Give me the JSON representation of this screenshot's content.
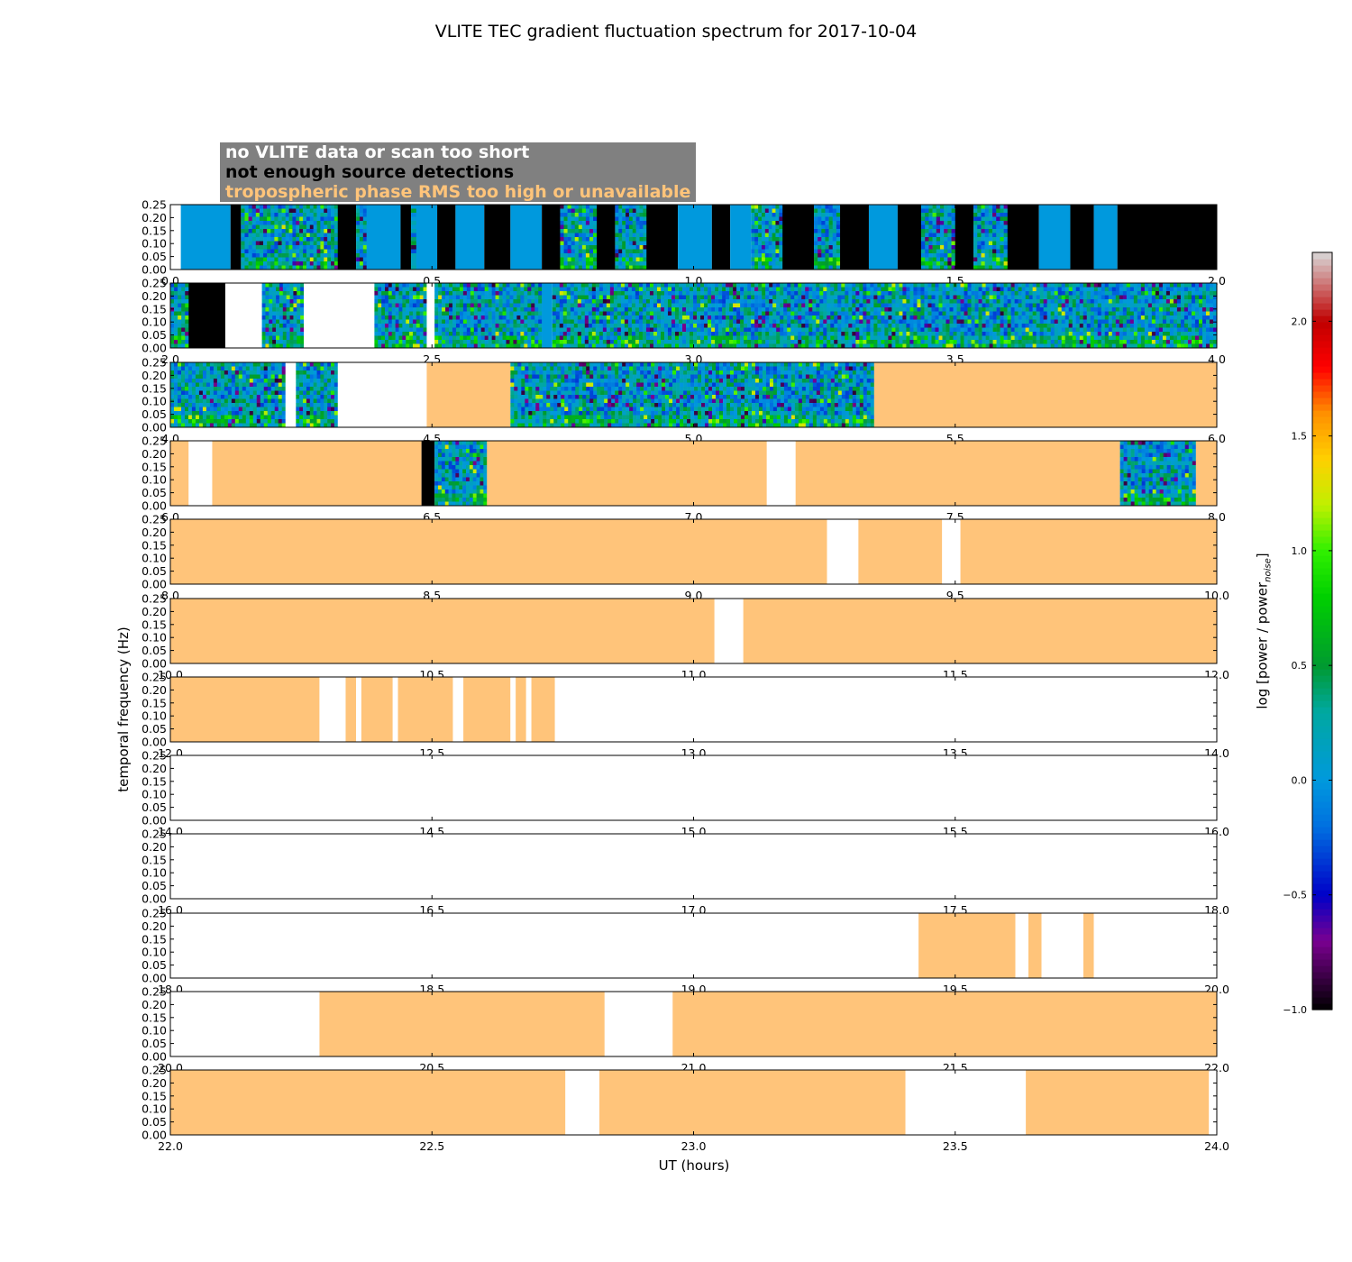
{
  "chart_data": {
    "type": "heatmap",
    "title": "VLITE TEC gradient fluctuation spectrum for 2017-10-04",
    "xlabel": "UT (hours)",
    "ylabel": "temporal frequency (Hz)",
    "colorbar": {
      "label": "log [power / power",
      "label_sub": "noise",
      "label_end": "]",
      "range": [
        -1.0,
        2.3
      ],
      "ticks": [
        "−1.0",
        "−0.5",
        "0.0",
        "0.5",
        "1.0",
        "1.5",
        "2.0"
      ],
      "tick_values": [
        -1.0,
        -0.5,
        0.0,
        0.5,
        1.0,
        1.5,
        2.0
      ]
    },
    "ylim": [
      0.0,
      0.25
    ],
    "yticks": [
      "0.00",
      "0.05",
      "0.10",
      "0.15",
      "0.20",
      "0.25"
    ],
    "legend": [
      {
        "text": "no VLITE data or scan too short",
        "color": "#ffffff"
      },
      {
        "text": "not enough source detections",
        "color": "#000000"
      },
      {
        "text": "tropospheric phase RMS too high or unavailable",
        "color": "#ffc47a"
      }
    ],
    "colors": {
      "no_data": "#ffffff",
      "no_detections": "#000000",
      "tropo": "#ffc47a",
      "baseline": "#0099dd"
    },
    "panels": [
      {
        "range": [
          0.0,
          2.0
        ],
        "xticks": [
          "0.0",
          "0.5",
          "1.0",
          "1.5",
          "2.0"
        ],
        "segments": [
          [
            0.0,
            0.02,
            "white"
          ],
          [
            0.02,
            0.115,
            "base"
          ],
          [
            0.115,
            0.135,
            "black"
          ],
          [
            0.135,
            0.22,
            "data"
          ],
          [
            0.22,
            0.26,
            "data"
          ],
          [
            0.26,
            0.32,
            "data"
          ],
          [
            0.32,
            0.355,
            "black"
          ],
          [
            0.355,
            0.375,
            "data"
          ],
          [
            0.375,
            0.44,
            "base"
          ],
          [
            0.44,
            0.46,
            "black"
          ],
          [
            0.46,
            0.47,
            "data"
          ],
          [
            0.47,
            0.51,
            "base"
          ],
          [
            0.51,
            0.545,
            "black"
          ],
          [
            0.545,
            0.6,
            "base"
          ],
          [
            0.6,
            0.65,
            "black"
          ],
          [
            0.65,
            0.71,
            "base"
          ],
          [
            0.71,
            0.745,
            "black"
          ],
          [
            0.745,
            0.815,
            "data"
          ],
          [
            0.815,
            0.85,
            "black"
          ],
          [
            0.85,
            0.91,
            "data"
          ],
          [
            0.91,
            0.97,
            "black"
          ],
          [
            0.97,
            1.035,
            "base"
          ],
          [
            1.035,
            1.07,
            "black"
          ],
          [
            1.07,
            1.11,
            "base"
          ],
          [
            1.11,
            1.17,
            "data"
          ],
          [
            1.17,
            1.23,
            "black"
          ],
          [
            1.23,
            1.28,
            "data"
          ],
          [
            1.28,
            1.335,
            "black"
          ],
          [
            1.335,
            1.39,
            "base"
          ],
          [
            1.39,
            1.435,
            "black"
          ],
          [
            1.435,
            1.5,
            "data"
          ],
          [
            1.5,
            1.535,
            "black"
          ],
          [
            1.535,
            1.6,
            "data"
          ],
          [
            1.6,
            1.66,
            "black"
          ],
          [
            1.66,
            1.72,
            "base"
          ],
          [
            1.72,
            1.765,
            "black"
          ],
          [
            1.765,
            1.81,
            "base"
          ],
          [
            1.81,
            2.0,
            "black"
          ]
        ]
      },
      {
        "range": [
          2.0,
          4.0
        ],
        "xticks": [
          "2.0",
          "2.5",
          "3.0",
          "3.5",
          "4.0"
        ],
        "segments": [
          [
            2.0,
            2.035,
            "data"
          ],
          [
            2.035,
            2.105,
            "black"
          ],
          [
            2.105,
            2.175,
            "white"
          ],
          [
            2.175,
            2.255,
            "data"
          ],
          [
            2.255,
            2.39,
            "white"
          ],
          [
            2.39,
            2.49,
            "data"
          ],
          [
            2.49,
            2.505,
            "white"
          ],
          [
            2.505,
            2.71,
            "data"
          ],
          [
            2.71,
            2.73,
            "base"
          ],
          [
            2.73,
            4.0,
            "data"
          ]
        ]
      },
      {
        "range": [
          4.0,
          6.0
        ],
        "xticks": [
          "4.0",
          "4.5",
          "5.0",
          "5.5",
          "6.0"
        ],
        "segments": [
          [
            4.0,
            4.22,
            "data"
          ],
          [
            4.22,
            4.24,
            "white"
          ],
          [
            4.24,
            4.32,
            "data"
          ],
          [
            4.32,
            4.49,
            "white"
          ],
          [
            4.49,
            4.65,
            "tropo"
          ],
          [
            4.65,
            5.345,
            "data"
          ],
          [
            5.345,
            6.0,
            "tropo"
          ]
        ]
      },
      {
        "range": [
          6.0,
          8.0
        ],
        "xticks": [
          "6.0",
          "6.5",
          "7.0",
          "7.5",
          "8.0"
        ],
        "segments": [
          [
            6.0,
            6.035,
            "tropo"
          ],
          [
            6.035,
            6.08,
            "white"
          ],
          [
            6.08,
            6.48,
            "tropo"
          ],
          [
            6.48,
            6.505,
            "black"
          ],
          [
            6.505,
            6.605,
            "data"
          ],
          [
            6.605,
            7.14,
            "tropo"
          ],
          [
            7.14,
            7.195,
            "white"
          ],
          [
            7.195,
            7.815,
            "tropo"
          ],
          [
            7.815,
            7.96,
            "data"
          ],
          [
            7.96,
            8.0,
            "tropo"
          ]
        ]
      },
      {
        "range": [
          8.0,
          10.0
        ],
        "xticks": [
          "8.0",
          "8.5",
          "9.0",
          "9.5",
          "10.0"
        ],
        "segments": [
          [
            8.0,
            9.255,
            "tropo"
          ],
          [
            9.255,
            9.315,
            "white"
          ],
          [
            9.315,
            9.475,
            "tropo"
          ],
          [
            9.475,
            9.51,
            "white"
          ],
          [
            9.51,
            10.0,
            "tropo"
          ]
        ]
      },
      {
        "range": [
          10.0,
          12.0
        ],
        "xticks": [
          "10.0",
          "10.5",
          "11.0",
          "11.5",
          "12.0"
        ],
        "segments": [
          [
            10.0,
            11.04,
            "tropo"
          ],
          [
            11.04,
            11.095,
            "white"
          ],
          [
            11.095,
            12.0,
            "tropo"
          ]
        ]
      },
      {
        "range": [
          12.0,
          14.0
        ],
        "xticks": [
          "12.0",
          "12.5",
          "13.0",
          "13.5",
          "14.0"
        ],
        "segments": [
          [
            12.0,
            12.285,
            "tropo"
          ],
          [
            12.285,
            12.335,
            "white"
          ],
          [
            12.335,
            12.355,
            "tropo"
          ],
          [
            12.355,
            12.365,
            "white"
          ],
          [
            12.365,
            12.425,
            "tropo"
          ],
          [
            12.425,
            12.435,
            "white"
          ],
          [
            12.435,
            12.54,
            "tropo"
          ],
          [
            12.54,
            12.56,
            "white"
          ],
          [
            12.56,
            12.65,
            "tropo"
          ],
          [
            12.65,
            12.66,
            "white"
          ],
          [
            12.66,
            12.68,
            "tropo"
          ],
          [
            12.68,
            12.69,
            "white"
          ],
          [
            12.69,
            12.735,
            "tropo"
          ],
          [
            12.735,
            14.0,
            "white"
          ]
        ]
      },
      {
        "range": [
          14.0,
          16.0
        ],
        "xticks": [
          "14.0",
          "14.5",
          "15.0",
          "15.5",
          "16.0"
        ],
        "segments": [
          [
            14.0,
            16.0,
            "white"
          ]
        ]
      },
      {
        "range": [
          16.0,
          18.0
        ],
        "xticks": [
          "16.0",
          "16.5",
          "17.0",
          "17.5",
          "18.0"
        ],
        "segments": [
          [
            16.0,
            18.0,
            "white"
          ]
        ]
      },
      {
        "range": [
          18.0,
          20.0
        ],
        "xticks": [
          "18.0",
          "18.5",
          "19.0",
          "19.5",
          "20.0"
        ],
        "segments": [
          [
            18.0,
            19.43,
            "white"
          ],
          [
            19.43,
            19.615,
            "tropo"
          ],
          [
            19.615,
            19.64,
            "white"
          ],
          [
            19.64,
            19.665,
            "tropo"
          ],
          [
            19.665,
            19.745,
            "white"
          ],
          [
            19.745,
            19.765,
            "tropo"
          ],
          [
            19.765,
            20.0,
            "white"
          ]
        ]
      },
      {
        "range": [
          20.0,
          22.0
        ],
        "xticks": [
          "20.0",
          "20.5",
          "21.0",
          "21.5",
          "22.0"
        ],
        "segments": [
          [
            20.0,
            20.285,
            "white"
          ],
          [
            20.285,
            20.83,
            "tropo"
          ],
          [
            20.83,
            20.96,
            "white"
          ],
          [
            20.96,
            22.0,
            "tropo"
          ]
        ]
      },
      {
        "range": [
          22.0,
          24.0
        ],
        "xticks": [
          "22.0",
          "22.5",
          "23.0",
          "23.5",
          "24.0"
        ],
        "segments": [
          [
            22.0,
            22.755,
            "tropo"
          ],
          [
            22.755,
            22.82,
            "white"
          ],
          [
            22.82,
            23.405,
            "tropo"
          ],
          [
            23.405,
            23.635,
            "white"
          ],
          [
            23.635,
            23.985,
            "tropo"
          ],
          [
            23.985,
            24.0,
            "white"
          ]
        ]
      }
    ]
  }
}
